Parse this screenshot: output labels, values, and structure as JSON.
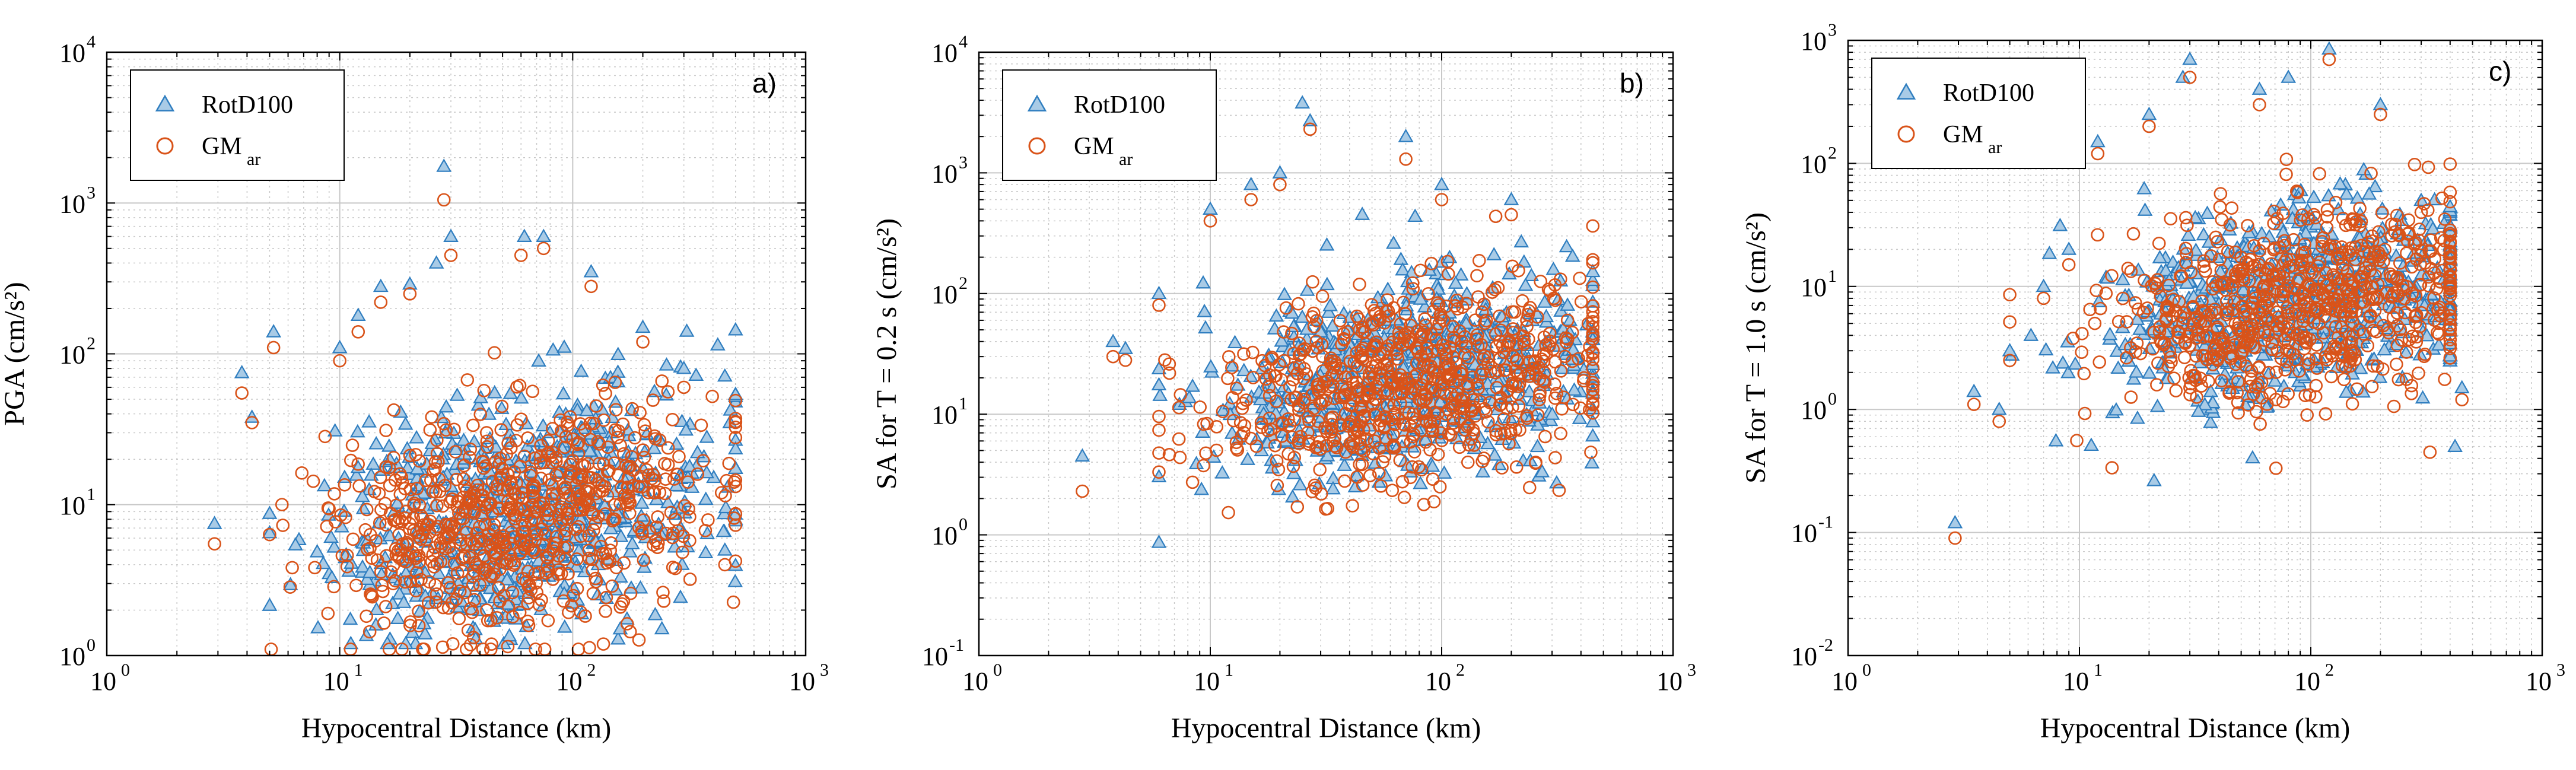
{
  "chart_data": [
    {
      "type": "scatter",
      "panel_label": "a)",
      "xlabel": "Hypocentral Distance (km)",
      "ylabel": "PGA (cm/s²)",
      "xscale": "log",
      "yscale": "log",
      "xlim": [
        1,
        1000
      ],
      "ylim": [
        1,
        10000
      ],
      "grid": true,
      "legend_position": "top-left",
      "series": [
        {
          "name": "RotD100",
          "marker": "triangle",
          "color": "#2f7ec0",
          "cloud": {
            "x_range": [
              5,
              500
            ],
            "y_range": [
              1.2,
              600
            ],
            "center": [
              60,
              9
            ]
          },
          "points": [
            [
              2.9,
              7.5
            ],
            [
              3.8,
              75
            ],
            [
              4.2,
              38
            ],
            [
              5.2,
              140
            ],
            [
              10,
              110
            ],
            [
              12,
              180
            ],
            [
              15,
              280
            ],
            [
              20,
              290
            ],
            [
              26,
              400
            ],
            [
              28,
              1750
            ],
            [
              30,
              600
            ],
            [
              62,
              600
            ],
            [
              75,
              600
            ],
            [
              120,
              350
            ],
            [
              200,
              150
            ],
            [
              300,
              80
            ],
            [
              450,
              5
            ]
          ]
        },
        {
          "name": "GM_ar",
          "marker": "circle",
          "color": "#d95319",
          "cloud": {
            "x_range": [
              5,
              500
            ],
            "y_range": [
              1.1,
              500
            ],
            "center": [
              60,
              8
            ]
          },
          "points": [
            [
              2.9,
              5.5
            ],
            [
              3.8,
              55
            ],
            [
              4.2,
              35
            ],
            [
              5.2,
              110
            ],
            [
              10,
              90
            ],
            [
              12,
              140
            ],
            [
              15,
              220
            ],
            [
              20,
              250
            ],
            [
              28,
              1050
            ],
            [
              30,
              450
            ],
            [
              60,
              450
            ],
            [
              75,
              500
            ],
            [
              120,
              280
            ],
            [
              200,
              120
            ],
            [
              300,
              60
            ],
            [
              450,
              4
            ]
          ]
        }
      ],
      "legend": [
        {
          "label": "RotD100"
        },
        {
          "label": "GM",
          "sub": "ar"
        }
      ]
    },
    {
      "type": "scatter",
      "panel_label": "b)",
      "xlabel": "Hypocentral Distance (km)",
      "ylabel": "SA for T = 0.2 s (cm/s²)",
      "xscale": "log",
      "yscale": "log",
      "xlim": [
        1,
        1000
      ],
      "ylim": [
        0.1,
        10000
      ],
      "grid": true,
      "legend_position": "top-left",
      "series": [
        {
          "name": "RotD100",
          "marker": "triangle",
          "color": "#2f7ec0",
          "cloud": {
            "x_range": [
              6,
              450
            ],
            "y_range": [
              0.7,
              1000
            ],
            "center": [
              70,
              20
            ]
          },
          "points": [
            [
              2.8,
              4.5
            ],
            [
              3.8,
              40
            ],
            [
              4.3,
              35
            ],
            [
              6,
              100
            ],
            [
              10,
              500
            ],
            [
              15,
              800
            ],
            [
              20,
              1000
            ],
            [
              25,
              3800
            ],
            [
              27,
              2700
            ],
            [
              70,
              2000
            ],
            [
              100,
              800
            ],
            [
              200,
              600
            ],
            [
              350,
              80
            ],
            [
              450,
              15
            ]
          ]
        },
        {
          "name": "GM_ar",
          "marker": "circle",
          "color": "#d95319",
          "cloud": {
            "x_range": [
              6,
              450
            ],
            "y_range": [
              0.6,
              900
            ],
            "center": [
              70,
              18
            ]
          },
          "points": [
            [
              2.8,
              2.3
            ],
            [
              3.8,
              30
            ],
            [
              4.3,
              28
            ],
            [
              6,
              80
            ],
            [
              10,
              400
            ],
            [
              15,
              600
            ],
            [
              20,
              800
            ],
            [
              27,
              2300
            ],
            [
              70,
              1300
            ],
            [
              100,
              600
            ],
            [
              200,
              450
            ],
            [
              350,
              60
            ],
            [
              450,
              12
            ]
          ]
        }
      ],
      "legend": [
        {
          "label": "RotD100"
        },
        {
          "label": "GM",
          "sub": "ar"
        }
      ]
    },
    {
      "type": "scatter",
      "panel_label": "c)",
      "xlabel": "Hypocentral Distance (km)",
      "ylabel": "SA for T = 1.0 s (cm/s²)",
      "xscale": "log",
      "yscale": "log",
      "xlim": [
        1,
        1000
      ],
      "ylim": [
        0.01,
        1000
      ],
      "grid": true,
      "legend_position": "top-left",
      "series": [
        {
          "name": "RotD100",
          "marker": "triangle",
          "color": "#2f7ec0",
          "cloud": {
            "x_range": [
              5,
              400
            ],
            "y_range": [
              0.02,
              500
            ],
            "center": [
              90,
              8
            ]
          },
          "points": [
            [
              2.9,
              0.12
            ],
            [
              3.5,
              1.4
            ],
            [
              4.5,
              1.0
            ],
            [
              5,
              3
            ],
            [
              7,
              10
            ],
            [
              9,
              20
            ],
            [
              12,
              150
            ],
            [
              20,
              250
            ],
            [
              28,
              500
            ],
            [
              30,
              700
            ],
            [
              60,
              400
            ],
            [
              80,
              500
            ],
            [
              120,
              850
            ],
            [
              200,
              300
            ],
            [
              300,
              50
            ],
            [
              450,
              1.5
            ],
            [
              420,
              0.5
            ]
          ]
        },
        {
          "name": "GM_ar",
          "marker": "circle",
          "color": "#d95319",
          "cloud": {
            "x_range": [
              5,
              400
            ],
            "y_range": [
              0.018,
              400
            ],
            "center": [
              90,
              7
            ]
          },
          "points": [
            [
              2.9,
              0.09
            ],
            [
              3.5,
              1.1
            ],
            [
              4.5,
              0.8
            ],
            [
              5,
              2.5
            ],
            [
              7,
              8
            ],
            [
              9,
              15
            ],
            [
              12,
              120
            ],
            [
              20,
              200
            ],
            [
              30,
              500
            ],
            [
              60,
              300
            ],
            [
              120,
              700
            ],
            [
              200,
              250
            ],
            [
              300,
              40
            ],
            [
              450,
              1.2
            ]
          ]
        }
      ],
      "legend": [
        {
          "label": "RotD100"
        },
        {
          "label": "GM",
          "sub": "ar"
        }
      ]
    }
  ]
}
